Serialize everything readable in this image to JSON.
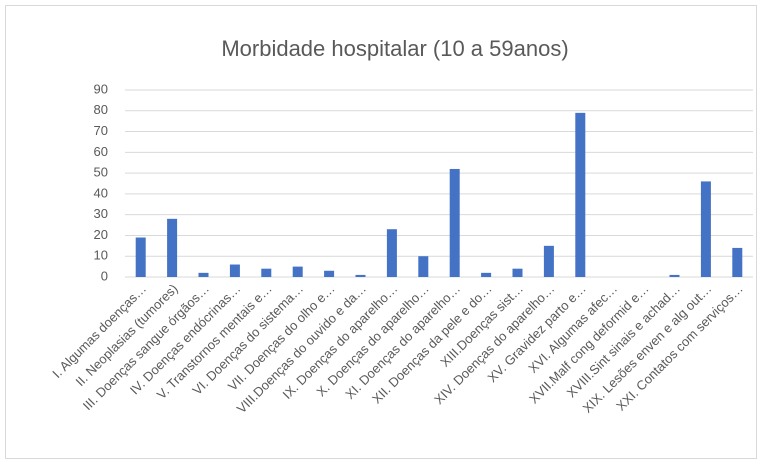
{
  "chart_data": {
    "type": "bar",
    "title": "Morbidade hospitalar (10 a 59anos)",
    "categories": [
      "I.  Algumas doenças…",
      "II.  Neoplasias (tumores)",
      "III. Doenças sangue órgãos…",
      "IV.  Doenças endócrinas…",
      "V.   Transtornos mentais e…",
      "VI.  Doenças do sistema…",
      "VII. Doenças do olho e…",
      "VIII.Doenças do ouvido e da…",
      "IX.  Doenças do aparelho…",
      "X.   Doenças do aparelho…",
      "XI.  Doenças do aparelho…",
      "XII. Doenças da pele e do…",
      "XIII.Doenças sist…",
      "XIV. Doenças do aparelho…",
      "XV.  Gravidez parto e…",
      "XVI. Algumas afec…",
      "XVII.Malf cong deformid e…",
      "XVIII.Sint sinais e achad…",
      "XIX. Lesões enven e alg out…",
      "XXI. Contatos com serviços…"
    ],
    "values": [
      19,
      28,
      2,
      6,
      4,
      5,
      3,
      1,
      23,
      10,
      52,
      2,
      4,
      15,
      79,
      0,
      0,
      1,
      46,
      14
    ],
    "color": "#4472c4",
    "ylim": [
      0,
      90
    ],
    "yticks": [
      0,
      10,
      20,
      30,
      40,
      50,
      60,
      70,
      80,
      90
    ],
    "grid": true
  }
}
